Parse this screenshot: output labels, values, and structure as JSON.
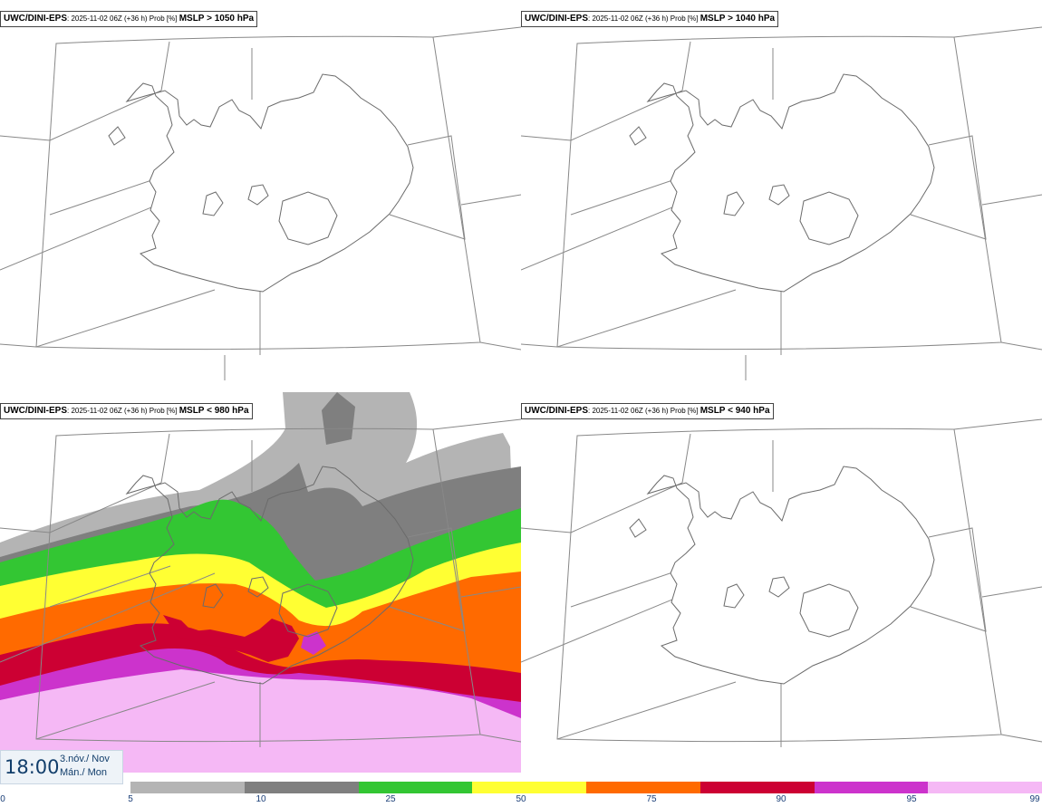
{
  "panels": [
    {
      "model": "UWC/DINI-EPS",
      "meta": ": 2025-11-02 06Z (+36 h) Prob [%] ",
      "threshold": "MSLP > 1050 hPa"
    },
    {
      "model": "UWC/DINI-EPS",
      "meta": ": 2025-11-02 06Z (+36 h) Prob [%] ",
      "threshold": "MSLP > 1040 hPa"
    },
    {
      "model": "UWC/DINI-EPS",
      "meta": ": 2025-11-02 06Z (+36 h) Prob [%] ",
      "threshold": "MSLP < 980 hPa"
    },
    {
      "model": "UWC/DINI-EPS",
      "meta": ": 2025-11-02 06Z (+36 h) Prob [%] ",
      "threshold": "MSLP < 940 hPa"
    }
  ],
  "valid_time": {
    "time": "18:00",
    "date_line1": "3.nóv./ Nov",
    "date_line2": "Mán./ Mon"
  },
  "colorbar": {
    "ticks": [
      "0",
      "5",
      "10",
      "25",
      "50",
      "75",
      "90",
      "95",
      "99"
    ],
    "colors": [
      "#b4b4b4",
      "#7f7f7f",
      "#33c633",
      "#ffff33",
      "#ff6a00",
      "#cc0033",
      "#cc33cc",
      "#f5b8f5"
    ]
  },
  "probability_bands_panel3": [
    {
      "range": "5-10",
      "color": "#b4b4b4"
    },
    {
      "range": "10-25",
      "color": "#7f7f7f"
    },
    {
      "range": "25-50",
      "color": "#33c633"
    },
    {
      "range": "50-75",
      "color": "#ffff33"
    },
    {
      "range": "75-90",
      "color": "#ff6a00"
    },
    {
      "range": "90-95",
      "color": "#cc0033"
    },
    {
      "range": "95-99",
      "color": "#cc33cc"
    },
    {
      "range": "99+",
      "color": "#f5b8f5"
    }
  ]
}
